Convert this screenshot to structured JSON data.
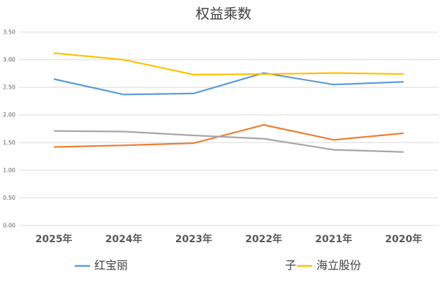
{
  "chart_data": {
    "type": "line",
    "title": "权益乘数",
    "categories": [
      "2025年",
      "2024年",
      "2023年",
      "2022年",
      "2021年",
      "2020年"
    ],
    "series": [
      {
        "name": "红宝丽",
        "color": "#5b9bd5",
        "values": [
          2.65,
          2.37,
          2.39,
          2.76,
          2.55,
          2.6
        ]
      },
      {
        "color": "#ed7d31",
        "values": [
          1.42,
          1.45,
          1.49,
          1.82,
          1.55,
          1.67
        ]
      },
      {
        "name": "子",
        "color": "#a5a5a5",
        "values": [
          1.71,
          1.7,
          1.63,
          1.57,
          1.37,
          1.33
        ]
      },
      {
        "name": "海立股份",
        "color": "#ffc000",
        "values": [
          3.12,
          3.0,
          2.73,
          2.74,
          2.76,
          2.74
        ]
      }
    ],
    "ylim": [
      0,
      3.5
    ],
    "yticks": [
      {
        "value": 0,
        "label": "0.00"
      },
      {
        "value": 0.5,
        "label": "0.50"
      },
      {
        "value": 1,
        "label": "1.00"
      },
      {
        "value": 1.5,
        "label": "1.50"
      },
      {
        "value": 2,
        "label": "2.00"
      },
      {
        "value": 2.5,
        "label": "2.50"
      },
      {
        "value": 3,
        "label": "3.00"
      },
      {
        "value": 3.5,
        "label": "3.50"
      }
    ],
    "grid": true
  }
}
